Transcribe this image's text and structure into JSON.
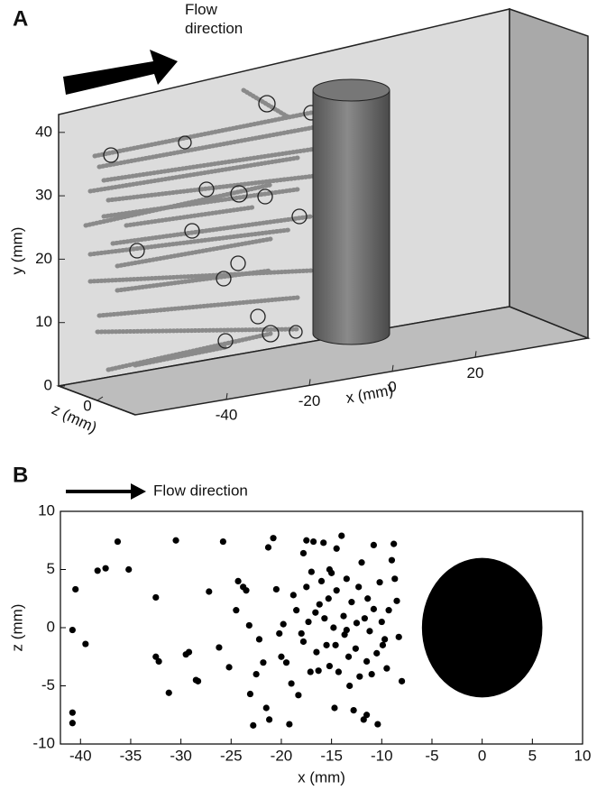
{
  "chart_data": [
    {
      "type": "3d-trajectories",
      "panel": "A",
      "flow_label": "Flow direction",
      "xlabel": "x (mm)",
      "ylabel": "y (mm)",
      "zlabel": "z (mm)",
      "xticks": [
        -40,
        -20,
        0,
        20
      ],
      "yticks": [
        0,
        10,
        20,
        30,
        40
      ],
      "zticks": [
        0
      ]
    },
    {
      "type": "scatter",
      "panel": "B",
      "flow_label": "Flow direction",
      "xlabel": "x (mm)",
      "ylabel": "z (mm)",
      "xlim": [
        -42,
        10
      ],
      "ylim": [
        -10,
        10
      ],
      "xticks": [
        -40,
        -35,
        -30,
        -25,
        -20,
        -15,
        -10,
        -5,
        0,
        5,
        10
      ],
      "yticks": [
        -10,
        -5,
        0,
        5,
        10
      ],
      "color": "#000000",
      "cylinder": {
        "x": 0,
        "z": 0,
        "radius": 6
      },
      "x": [
        -40.5,
        -40.8,
        -39.5,
        -40.8,
        -40.8,
        -38.3,
        -37.5,
        -36.3,
        -35.2,
        -32.5,
        -32.5,
        -32.2,
        -31.2,
        -30.5,
        -29.5,
        -29.2,
        -28.5,
        -28.3,
        -27.2,
        -26.2,
        -25.8,
        -25.2,
        -24.5,
        -24.3,
        -23.8,
        -23.5,
        -23.2,
        -23.1,
        -22.8,
        -22.5,
        -22.2,
        -21.8,
        -21.5,
        -21.3,
        -21.2,
        -20.8,
        -20.5,
        -20.2,
        -20.0,
        -19.8,
        -19.5,
        -19.2,
        -19.0,
        -18.8,
        -18.5,
        -18.3,
        -18.0,
        -17.8,
        -17.5,
        -17.3,
        -17.1,
        -17.0,
        -16.8,
        -16.6,
        -16.5,
        -16.3,
        -16.0,
        -15.8,
        -15.7,
        -15.5,
        -15.3,
        -15.2,
        -15.0,
        -14.8,
        -14.6,
        -14.5,
        -14.3,
        -14.0,
        -13.8,
        -13.7,
        -13.5,
        -13.3,
        -13.2,
        -13.0,
        -12.8,
        -12.6,
        -12.5,
        -12.3,
        -12.2,
        -12.0,
        -11.8,
        -11.7,
        -11.5,
        -11.4,
        -11.2,
        -11.0,
        -10.8,
        -10.5,
        -10.4,
        -10.2,
        -10.0,
        -9.9,
        -9.7,
        -9.5,
        -9.3,
        -9.0,
        -8.8,
        -8.7,
        -8.5,
        -8.3,
        -8.0,
        -11.5,
        -14.5,
        -16.2,
        -17.8,
        -13.5,
        -10.8,
        -14.7,
        -17.5,
        -15.2
      ],
      "values": [
        3.3,
        -0.2,
        -1.4,
        -7.3,
        -8.2,
        4.9,
        5.1,
        7.4,
        5.0,
        2.6,
        -2.5,
        -2.9,
        -5.6,
        7.5,
        -2.3,
        -2.1,
        -4.5,
        -4.6,
        3.1,
        -1.7,
        7.4,
        -3.4,
        1.5,
        4.0,
        3.5,
        3.2,
        0.2,
        -5.7,
        -8.4,
        -4.0,
        -1.0,
        -3.0,
        -6.9,
        6.9,
        -7.9,
        7.7,
        3.3,
        -0.5,
        -2.5,
        0.3,
        -3.0,
        -8.3,
        -4.8,
        2.8,
        1.5,
        -5.8,
        -0.5,
        6.4,
        3.5,
        0.5,
        -3.8,
        4.8,
        7.4,
        1.3,
        -2.1,
        -3.7,
        4.0,
        7.3,
        0.8,
        -1.5,
        2.5,
        -3.3,
        4.7,
        0.0,
        -1.5,
        3.2,
        -3.8,
        7.9,
        1.0,
        -0.6,
        4.2,
        -2.5,
        -5.0,
        2.2,
        -7.1,
        -1.8,
        0.4,
        3.5,
        -4.2,
        5.6,
        -7.9,
        0.8,
        -2.9,
        2.5,
        -0.3,
        -4.0,
        1.6,
        -2.2,
        -8.3,
        3.9,
        0.5,
        -1.5,
        -1.0,
        -3.5,
        1.5,
        5.8,
        7.2,
        4.2,
        2.3,
        -0.8,
        -4.6,
        -7.5,
        6.8,
        2.0,
        -1.2,
        -0.2,
        7.1,
        -6.9,
        7.5,
        5.0
      ]
    }
  ]
}
